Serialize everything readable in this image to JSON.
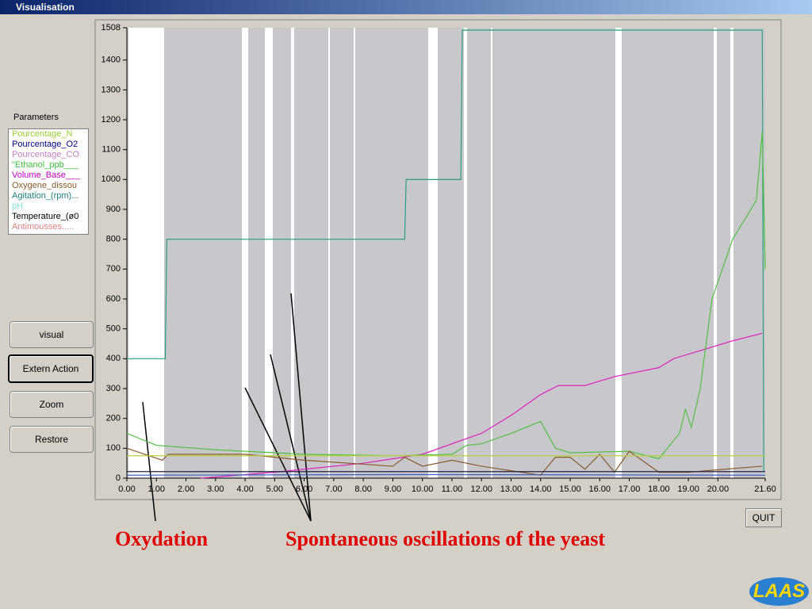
{
  "window": {
    "title": "Visualisation"
  },
  "parameters": {
    "label": "Parameters",
    "items": [
      {
        "text": "Pourcentage_N",
        "color": "#9acd32"
      },
      {
        "text": "Pourcentage_O2",
        "color": "#000080"
      },
      {
        "text": "Pourcentage_CO",
        "color": "#c080c0"
      },
      {
        "text": "\"Ethanol_ppb___",
        "color": "#40c040"
      },
      {
        "text": "Volume_Base___",
        "color": "#c000c0"
      },
      {
        "text": "Oxygene_dissou",
        "color": "#8b5a2b"
      },
      {
        "text": "Agitation_(rpm)...",
        "color": "#208080"
      },
      {
        "text": "pH",
        "color": "#80e0e0"
      },
      {
        "text": "Temperature_(ø0",
        "color": "#000000"
      },
      {
        "text": "Antimousses.....",
        "color": "#e08080"
      }
    ]
  },
  "buttons": [
    "visual",
    "Extern Action",
    "Zoom",
    "Restore",
    "QUIT"
  ],
  "annotations": [
    "Oxydation",
    "Spontaneous oscillations of the yeast"
  ],
  "logo": "LAAS",
  "chart_data": {
    "type": "line",
    "xlim": [
      0,
      21.6
    ],
    "ylim": [
      0,
      1508
    ],
    "xticks": [
      {
        "value": 0,
        "label": "0.00"
      },
      {
        "value": 1,
        "label": "1.00"
      },
      {
        "value": 2,
        "label": "2.00"
      },
      {
        "value": 3,
        "label": "3.00"
      },
      {
        "value": 4,
        "label": "4.00"
      },
      {
        "value": 5,
        "label": "5.00"
      },
      {
        "value": 6,
        "label": "6.00"
      },
      {
        "value": 7,
        "label": "7.00"
      },
      {
        "value": 8,
        "label": "8.00"
      },
      {
        "value": 9,
        "label": "9.00"
      },
      {
        "value": 10,
        "label": "10.00"
      },
      {
        "value": 11,
        "label": "11.00"
      },
      {
        "value": 12,
        "label": "12.00"
      },
      {
        "value": 13,
        "label": "13.00"
      },
      {
        "value": 14,
        "label": "14.00"
      },
      {
        "value": 15,
        "label": "15.00"
      },
      {
        "value": 16,
        "label": "16.00"
      },
      {
        "value": 17,
        "label": "17.00"
      },
      {
        "value": 18,
        "label": "18.00"
      },
      {
        "value": 19,
        "label": "19.00"
      },
      {
        "value": 20,
        "label": "20.00"
      },
      {
        "value": 21.6,
        "label": "21.60"
      }
    ],
    "yticks": [
      0,
      100,
      200,
      300,
      400,
      500,
      600,
      700,
      800,
      900,
      1000,
      1100,
      1200,
      1300,
      1400,
      1508
    ],
    "series": [
      {
        "color": "#2a9d80",
        "x": [
          0,
          1.3,
          1.35,
          9.4,
          9.45,
          11.3,
          11.35,
          21.5,
          21.55
        ],
        "values": [
          400,
          400,
          800,
          800,
          1000,
          1000,
          1500,
          1500,
          20
        ]
      },
      {
        "color": "#e020c0",
        "x": [
          2.5,
          5,
          8,
          10,
          12,
          13,
          14,
          14.6,
          15.5,
          16.5,
          17,
          18,
          18.5,
          19.5,
          20.5,
          21.5
        ],
        "values": [
          0,
          20,
          50,
          80,
          150,
          210,
          280,
          310,
          310,
          340,
          350,
          370,
          400,
          430,
          460,
          485
        ]
      },
      {
        "color": "#50c040",
        "x": [
          0,
          1,
          3,
          6,
          9,
          11,
          11.5,
          12,
          13,
          14,
          14.5,
          15,
          17,
          18,
          18.7,
          18.9,
          19.1,
          19.4,
          19.8,
          20.5,
          21.3,
          21.5,
          21.6
        ],
        "values": [
          150,
          110,
          95,
          80,
          75,
          80,
          110,
          115,
          150,
          190,
          100,
          85,
          90,
          65,
          150,
          230,
          170,
          300,
          600,
          800,
          930,
          1160,
          700
        ]
      },
      {
        "color": "#8b5a2b",
        "x": [
          0,
          1.2,
          1.4,
          4,
          6,
          9,
          9.4,
          10,
          11,
          12,
          14,
          14.5,
          15,
          15.5,
          16,
          16.5,
          17,
          18,
          19,
          21.5
        ],
        "values": [
          100,
          60,
          80,
          80,
          60,
          40,
          70,
          40,
          60,
          40,
          10,
          70,
          70,
          30,
          80,
          20,
          90,
          20,
          20,
          40
        ]
      },
      {
        "color": "#b8d040",
        "x": [
          0,
          21.6
        ],
        "values": [
          75,
          75
        ]
      },
      {
        "color": "#202040",
        "x": [
          0,
          21.6
        ],
        "values": [
          22,
          22
        ]
      },
      {
        "color": "#4060c0",
        "x": [
          0,
          10,
          21.6
        ],
        "values": [
          10,
          12,
          10
        ]
      }
    ]
  }
}
